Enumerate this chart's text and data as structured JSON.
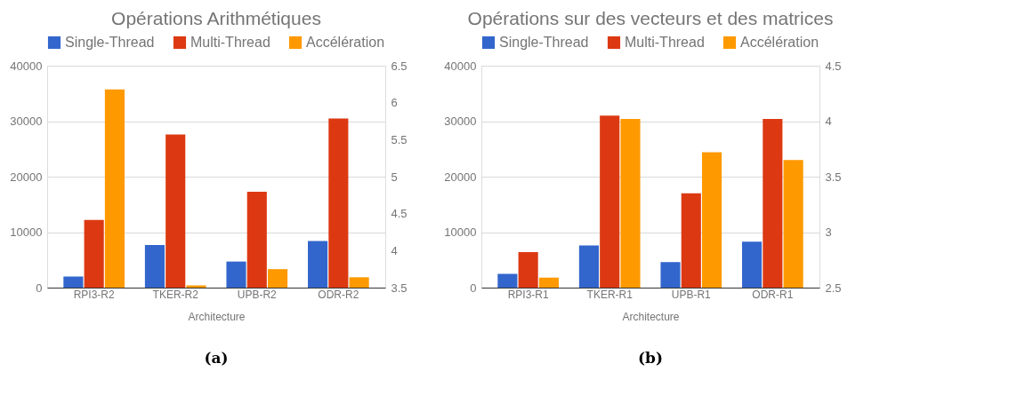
{
  "chart_data": [
    {
      "type": "bar",
      "title": "Opérations Arithmétiques",
      "xlabel": "Architecture",
      "categories": [
        "RPI3-R2",
        "TKER-R2",
        "UPB-R2",
        "ODR-R2"
      ],
      "series": [
        {
          "name": "Single-Thread",
          "color": "#3366cc",
          "values": [
            2000,
            7700,
            4700,
            8400
          ]
        },
        {
          "name": "Multi-Thread",
          "color": "#dc3912",
          "values": [
            12200,
            27600,
            17300,
            30500
          ]
        },
        {
          "name": "Accélération",
          "color": "#ff9900",
          "axis": "y2",
          "values": [
            6.18,
            3.53,
            3.75,
            3.64
          ]
        }
      ],
      "ylim": [
        0,
        40000
      ],
      "yticks": [
        0,
        10000,
        20000,
        30000,
        40000
      ],
      "y2lim": [
        3.5,
        6.5
      ],
      "y2ticks": [
        3.5,
        4,
        4.5,
        5,
        5.5,
        6,
        6.5
      ],
      "grid": "y",
      "legend": "top",
      "annotations": [
        "(a)"
      ]
    },
    {
      "type": "bar",
      "title": "Opérations sur des vecteurs et des matrices",
      "xlabel": "Architecture",
      "categories": [
        "RPI3-R1",
        "TKER-R1",
        "UPB-R1",
        "ODR-R1"
      ],
      "series": [
        {
          "name": "Single-Thread",
          "color": "#3366cc",
          "values": [
            2500,
            7600,
            4600,
            8300
          ]
        },
        {
          "name": "Multi-Thread",
          "color": "#dc3912",
          "values": [
            6400,
            31000,
            17000,
            30400
          ]
        },
        {
          "name": "Accélération",
          "color": "#ff9900",
          "axis": "y2",
          "values": [
            2.59,
            4.02,
            3.72,
            3.65
          ]
        }
      ],
      "ylim": [
        0,
        40000
      ],
      "yticks": [
        0,
        10000,
        20000,
        30000,
        40000
      ],
      "y2lim": [
        2.5,
        4.5
      ],
      "y2ticks": [
        2.5,
        3,
        3.5,
        4,
        4.5
      ],
      "grid": "y",
      "legend": "top",
      "annotations": [
        "(b)"
      ]
    }
  ]
}
